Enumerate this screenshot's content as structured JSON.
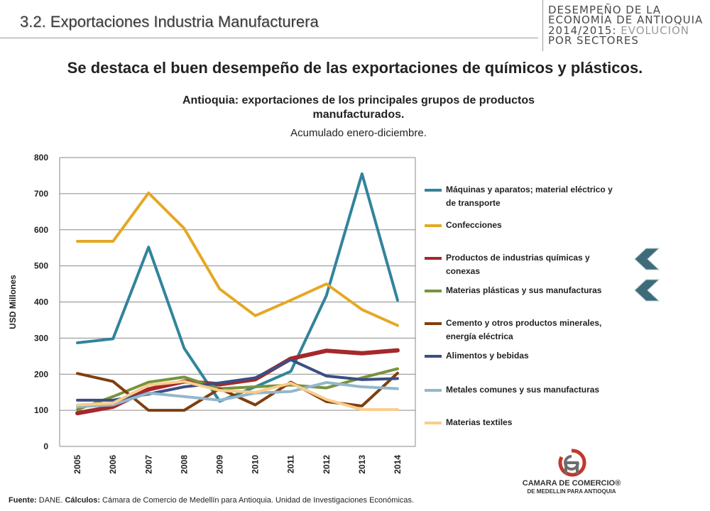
{
  "header": {
    "section_title": "3.2. Exportaciones Industria Manufacturera",
    "brand_lines": [
      "DESEMPEÑO DE LA",
      "ECONOMÍA DE ANTIOQUIA",
      "2014/2015: EVOLUCIÓN",
      "POR SECTORES"
    ],
    "brand_line3_bold": "2014/2015:",
    "brand_line3_light": " EVOLUCIÓN"
  },
  "headline": "Se destaca el buen desempeño de las exportaciones de químicos y plásticos.",
  "chart_data": {
    "type": "line",
    "title_line1": "Antioquia: exportaciones de los principales grupos de productos",
    "title_line2": "manufacturados.",
    "subtitle": "Acumulado enero-diciembre.",
    "ylabel": "USD Millones",
    "xlabel": "",
    "ylim": [
      0,
      800
    ],
    "yticks": [
      "0",
      "100",
      "200",
      "300",
      "400",
      "500",
      "600",
      "700",
      "800"
    ],
    "categories": [
      "2005",
      "2006",
      "2007",
      "2008",
      "2009",
      "2010",
      "2011",
      "2012",
      "2013",
      "2014"
    ],
    "grid": "horizontal",
    "legend_position": "right",
    "series": [
      {
        "name": "Máquinas y aparatos; material eléctrico y de  transporte",
        "color": "#31849b",
        "values": [
          287,
          298,
          552,
          272,
          125,
          165,
          208,
          418,
          755,
          405
        ]
      },
      {
        "name": "Confecciones",
        "color": "#e5a823",
        "values": [
          568,
          568,
          702,
          604,
          436,
          362,
          405,
          450,
          379,
          335
        ]
      },
      {
        "name": "Productos de industrias químicas y conexas",
        "color": "#a5282b",
        "values": [
          92,
          110,
          158,
          180,
          172,
          186,
          243,
          265,
          258,
          266
        ]
      },
      {
        "name": "Materias plásticas y sus manufacturas",
        "color": "#77933c",
        "values": [
          102,
          138,
          178,
          192,
          160,
          165,
          170,
          162,
          190,
          215
        ]
      },
      {
        "name": "Cemento y otros productos minerales, energía eléctrica",
        "color": "#7f3f0f",
        "values": [
          202,
          180,
          100,
          100,
          160,
          115,
          178,
          124,
          112,
          203
        ]
      },
      {
        "name": "Alimentos y bebidas",
        "color": "#3b4e85",
        "values": [
          128,
          128,
          145,
          165,
          176,
          190,
          240,
          195,
          185,
          188
        ]
      },
      {
        "name": "Metales comunes y sus manufacturas",
        "color": "#93b7cc",
        "values": [
          110,
          115,
          148,
          138,
          128,
          148,
          152,
          177,
          165,
          160
        ]
      },
      {
        "name": "Materias textiles",
        "color": "#f9cd8a",
        "values": [
          115,
          120,
          170,
          180,
          155,
          150,
          175,
          130,
          102,
          102
        ]
      }
    ]
  },
  "legend_labels": [
    [
      "Máquinas y aparatos; material eléctrico y",
      "de  transporte"
    ],
    [
      "Confecciones"
    ],
    [
      "Productos de industrias químicas y",
      "conexas"
    ],
    [
      "Materias plásticas y sus manufacturas"
    ],
    [
      "Cemento y otros productos minerales,",
      "energía eléctrica"
    ],
    [
      "Alimentos y bebidas"
    ],
    [
      "Metales comunes y sus manufacturas"
    ],
    [
      "Materias textiles"
    ]
  ],
  "footer": {
    "source_label": "Fuente:",
    "source_value": " DANE. ",
    "calc_label": "Cálculos:",
    "calc_value": " Cámara de Comercio de Medellín para Antioquia. Unidad de Investigaciones Económicas."
  },
  "logo": {
    "line1": "CAMARA DE COMERCIO®",
    "line2": "DE MEDELLIN PARA ANTIOQUIA"
  },
  "colors": {
    "arrow": "#3e6b7a",
    "logo_red": "#c0392b",
    "logo_gray": "#6d6d6d"
  }
}
